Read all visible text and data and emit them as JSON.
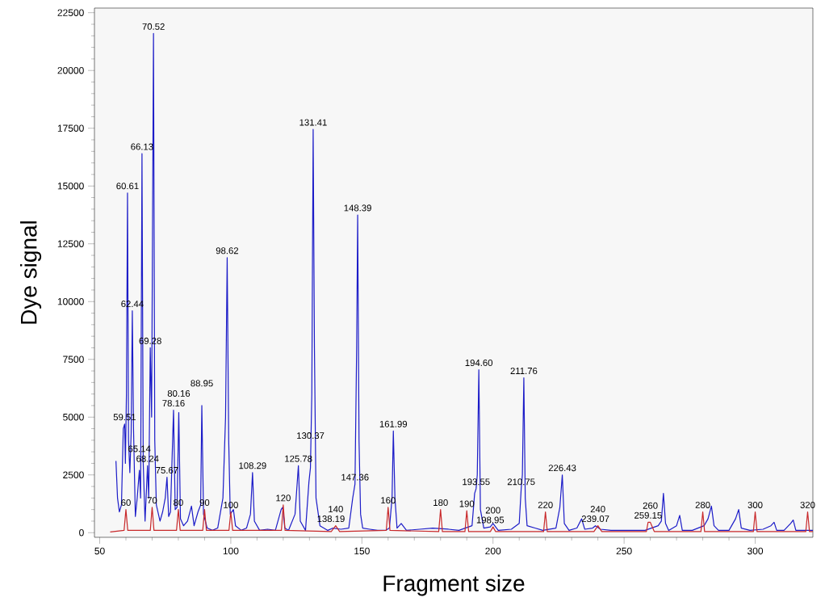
{
  "chart_data": {
    "type": "line",
    "xlabel": "Fragment size",
    "ylabel": "Dye signal",
    "xlim": [
      48,
      322
    ],
    "ylim": [
      -200,
      22700
    ],
    "xticks": [
      50,
      100,
      150,
      200,
      250,
      300
    ],
    "yticks": [
      0,
      2500,
      5000,
      7500,
      10000,
      12500,
      15000,
      17500,
      20000,
      22500
    ],
    "series": [
      {
        "color": "#1c1cc8",
        "x": [
          56.2,
          56.8,
          57.5,
          58.3,
          59.0,
          59.51,
          59.8,
          60.2,
          60.61,
          61.0,
          61.5,
          62.0,
          62.44,
          62.9,
          63.6,
          64.3,
          65.14,
          65.6,
          66.13,
          66.6,
          67.3,
          68.24,
          68.7,
          69.28,
          69.8,
          70.52,
          71.0,
          71.6,
          73.0,
          74.0,
          75.0,
          75.67,
          76.3,
          77.0,
          78.16,
          78.8,
          79.5,
          80.16,
          80.8,
          82.0,
          83.5,
          85.0,
          86.0,
          87.5,
          88.5,
          88.95,
          89.6,
          91.0,
          93.0,
          95.0,
          97.0,
          98.0,
          98.62,
          99.2,
          99.8,
          101.0,
          101.8,
          104.0,
          106.0,
          107.5,
          108.29,
          109.0,
          111.0,
          114,
          117,
          119.2,
          119.8,
          120.6,
          122,
          124.5,
          125.78,
          126.5,
          128.5,
          129.8,
          130.37,
          130.9,
          131.41,
          131.9,
          132.5,
          134,
          137,
          139,
          142,
          145,
          146.5,
          147.36,
          148.0,
          148.39,
          148.9,
          149.5,
          150.3,
          153,
          156,
          159,
          160.5,
          161.5,
          161.99,
          162.6,
          163.4,
          165,
          167,
          172,
          177,
          183,
          187,
          192.0,
          193.0,
          193.55,
          194.0,
          194.6,
          195.2,
          196.5,
          198.95,
          200,
          202,
          207,
          210,
          210.75,
          211.2,
          211.76,
          212.3,
          213,
          216,
          219,
          224,
          225.5,
          226.43,
          227.2,
          229,
          232,
          233.8,
          235,
          238,
          239.07,
          241,
          245,
          250,
          255,
          258,
          263,
          264.2,
          265.0,
          265.8,
          267,
          270,
          271.2,
          272.2,
          276,
          280.5,
          282,
          283.3,
          284.3,
          286,
          290,
          292.5,
          293.7,
          294.7,
          298,
          303,
          306,
          307.2,
          308.2,
          311,
          313.5,
          314.5,
          315.5,
          318,
          322
        ],
        "values": [
          3100,
          1500,
          900,
          1200,
          4500,
          4700,
          3000,
          6000,
          14700,
          4000,
          2600,
          4300,
          9600,
          4500,
          700,
          1500,
          2700,
          1500,
          16400,
          3000,
          500,
          2900,
          1500,
          8000,
          5000,
          21600,
          4000,
          1200,
          500,
          900,
          1500,
          2400,
          700,
          900,
          5300,
          1000,
          1100,
          5200,
          600,
          300,
          500,
          1150,
          300,
          900,
          1200,
          5500,
          800,
          200,
          100,
          200,
          1500,
          5000,
          11900,
          4000,
          800,
          1000,
          300,
          100,
          200,
          800,
          2600,
          500,
          100,
          150,
          100,
          1000,
          1100,
          200,
          100,
          800,
          2900,
          500,
          100,
          2200,
          2800,
          6000,
          17450,
          8000,
          1500,
          300,
          100,
          200,
          150,
          200,
          1500,
          2100,
          8000,
          13750,
          4000,
          800,
          200,
          150,
          100,
          100,
          200,
          1500,
          4400,
          1500,
          200,
          400,
          100,
          150,
          200,
          150,
          100,
          300,
          1700,
          1900,
          2500,
          7050,
          1000,
          200,
          250,
          400,
          100,
          150,
          400,
          1900,
          2500,
          6700,
          1500,
          300,
          200,
          100,
          200,
          1100,
          2500,
          400,
          100,
          200,
          600,
          150,
          200,
          300,
          150,
          100,
          100,
          100,
          100,
          300,
          500,
          1700,
          400,
          100,
          300,
          750,
          100,
          100,
          300,
          600,
          1150,
          300,
          100,
          100,
          600,
          1000,
          200,
          100,
          150,
          300,
          450,
          100,
          100,
          400,
          550,
          100,
          100,
          100
        ]
      },
      {
        "color": "#c8282a",
        "x": [
          54,
          59.3,
          60,
          60.7,
          69.3,
          70,
          70.7,
          79.3,
          80,
          80.7,
          89.3,
          90,
          90.7,
          99.3,
          100,
          100.7,
          119.3,
          120,
          120.7,
          138.3,
          140,
          141.5,
          159.3,
          160,
          160.7,
          179.3,
          180,
          180.7,
          189.3,
          190,
          190.7,
          199,
          200,
          201,
          219.3,
          220,
          220.7,
          238.5,
          240,
          241.5,
          258.5,
          259.15,
          260,
          261.5,
          279.3,
          280,
          280.7,
          299.3,
          300,
          300.7,
          319.3,
          320,
          320.7,
          322
        ],
        "values": [
          30,
          100,
          1000,
          100,
          100,
          1100,
          100,
          100,
          1000,
          100,
          100,
          1000,
          100,
          100,
          900,
          100,
          100,
          1200,
          100,
          50,
          300,
          50,
          100,
          1100,
          100,
          50,
          1000,
          50,
          50,
          950,
          50,
          50,
          250,
          50,
          50,
          900,
          50,
          50,
          300,
          50,
          50,
          450,
          450,
          50,
          50,
          900,
          50,
          50,
          900,
          50,
          50,
          900,
          50,
          50
        ]
      }
    ],
    "annotations": [
      {
        "text": "70.52",
        "x": 70.52,
        "y": 21600
      },
      {
        "text": "66.13",
        "x": 66.13,
        "y": 16400
      },
      {
        "text": "60.61",
        "x": 60.61,
        "y": 14700
      },
      {
        "text": "62.44",
        "x": 62.44,
        "y": 9600
      },
      {
        "text": "69.28",
        "x": 69.28,
        "y": 8000
      },
      {
        "text": "59.51",
        "x": 59.51,
        "y": 4700
      },
      {
        "text": "68.24",
        "x": 68.24,
        "y": 2900
      },
      {
        "text": "65.14",
        "x": 65.14,
        "y": 2700
      },
      {
        "text": "75.67",
        "x": 75.67,
        "y": 2400
      },
      {
        "text": "78.16",
        "x": 78.16,
        "y": 5300
      },
      {
        "text": "80.16",
        "x": 80.16,
        "y": 5200
      },
      {
        "text": "88.95",
        "x": 88.95,
        "y": 5500
      },
      {
        "text": "98.62",
        "x": 98.62,
        "y": 11900
      },
      {
        "text": "108.29",
        "x": 108.29,
        "y": 2600
      },
      {
        "text": "125.78",
        "x": 125.78,
        "y": 2900
      },
      {
        "text": "130.37",
        "x": 130.37,
        "y": 3900
      },
      {
        "text": "131.41",
        "x": 131.41,
        "y": 17450
      },
      {
        "text": "147.36",
        "x": 147.36,
        "y": 2100
      },
      {
        "text": "148.39",
        "x": 148.39,
        "y": 13750
      },
      {
        "text": "138.19",
        "x": 138.19,
        "y": 300
      },
      {
        "text": "161.99",
        "x": 161.99,
        "y": 4400
      },
      {
        "text": "193.55",
        "x": 193.55,
        "y": 1900
      },
      {
        "text": "194.60",
        "x": 194.6,
        "y": 7050
      },
      {
        "text": "198.95",
        "x": 198.95,
        "y": 250
      },
      {
        "text": "210.75",
        "x": 210.75,
        "y": 1900
      },
      {
        "text": "211.76",
        "x": 211.76,
        "y": 6700
      },
      {
        "text": "226.43",
        "x": 226.43,
        "y": 2500
      },
      {
        "text": "239.07",
        "x": 239.07,
        "y": 300
      },
      {
        "text": "259.15",
        "x": 259.15,
        "y": 450
      },
      {
        "text": "60",
        "x": 60,
        "y": 1000
      },
      {
        "text": "70",
        "x": 70,
        "y": 1100
      },
      {
        "text": "80",
        "x": 80,
        "y": 1000
      },
      {
        "text": "90",
        "x": 90,
        "y": 1000
      },
      {
        "text": "100",
        "x": 100,
        "y": 900
      },
      {
        "text": "120",
        "x": 120,
        "y": 1200
      },
      {
        "text": "140",
        "x": 140,
        "y": 300
      },
      {
        "text": "160",
        "x": 160,
        "y": 1100
      },
      {
        "text": "180",
        "x": 180,
        "y": 1000
      },
      {
        "text": "190",
        "x": 190,
        "y": 950
      },
      {
        "text": "200",
        "x": 200,
        "y": 250
      },
      {
        "text": "220",
        "x": 220,
        "y": 900
      },
      {
        "text": "240",
        "x": 240,
        "y": 300
      },
      {
        "text": "260",
        "x": 260,
        "y": 450
      },
      {
        "text": "280",
        "x": 280,
        "y": 900
      },
      {
        "text": "300",
        "x": 300,
        "y": 900
      },
      {
        "text": "320",
        "x": 320,
        "y": 900
      }
    ]
  }
}
